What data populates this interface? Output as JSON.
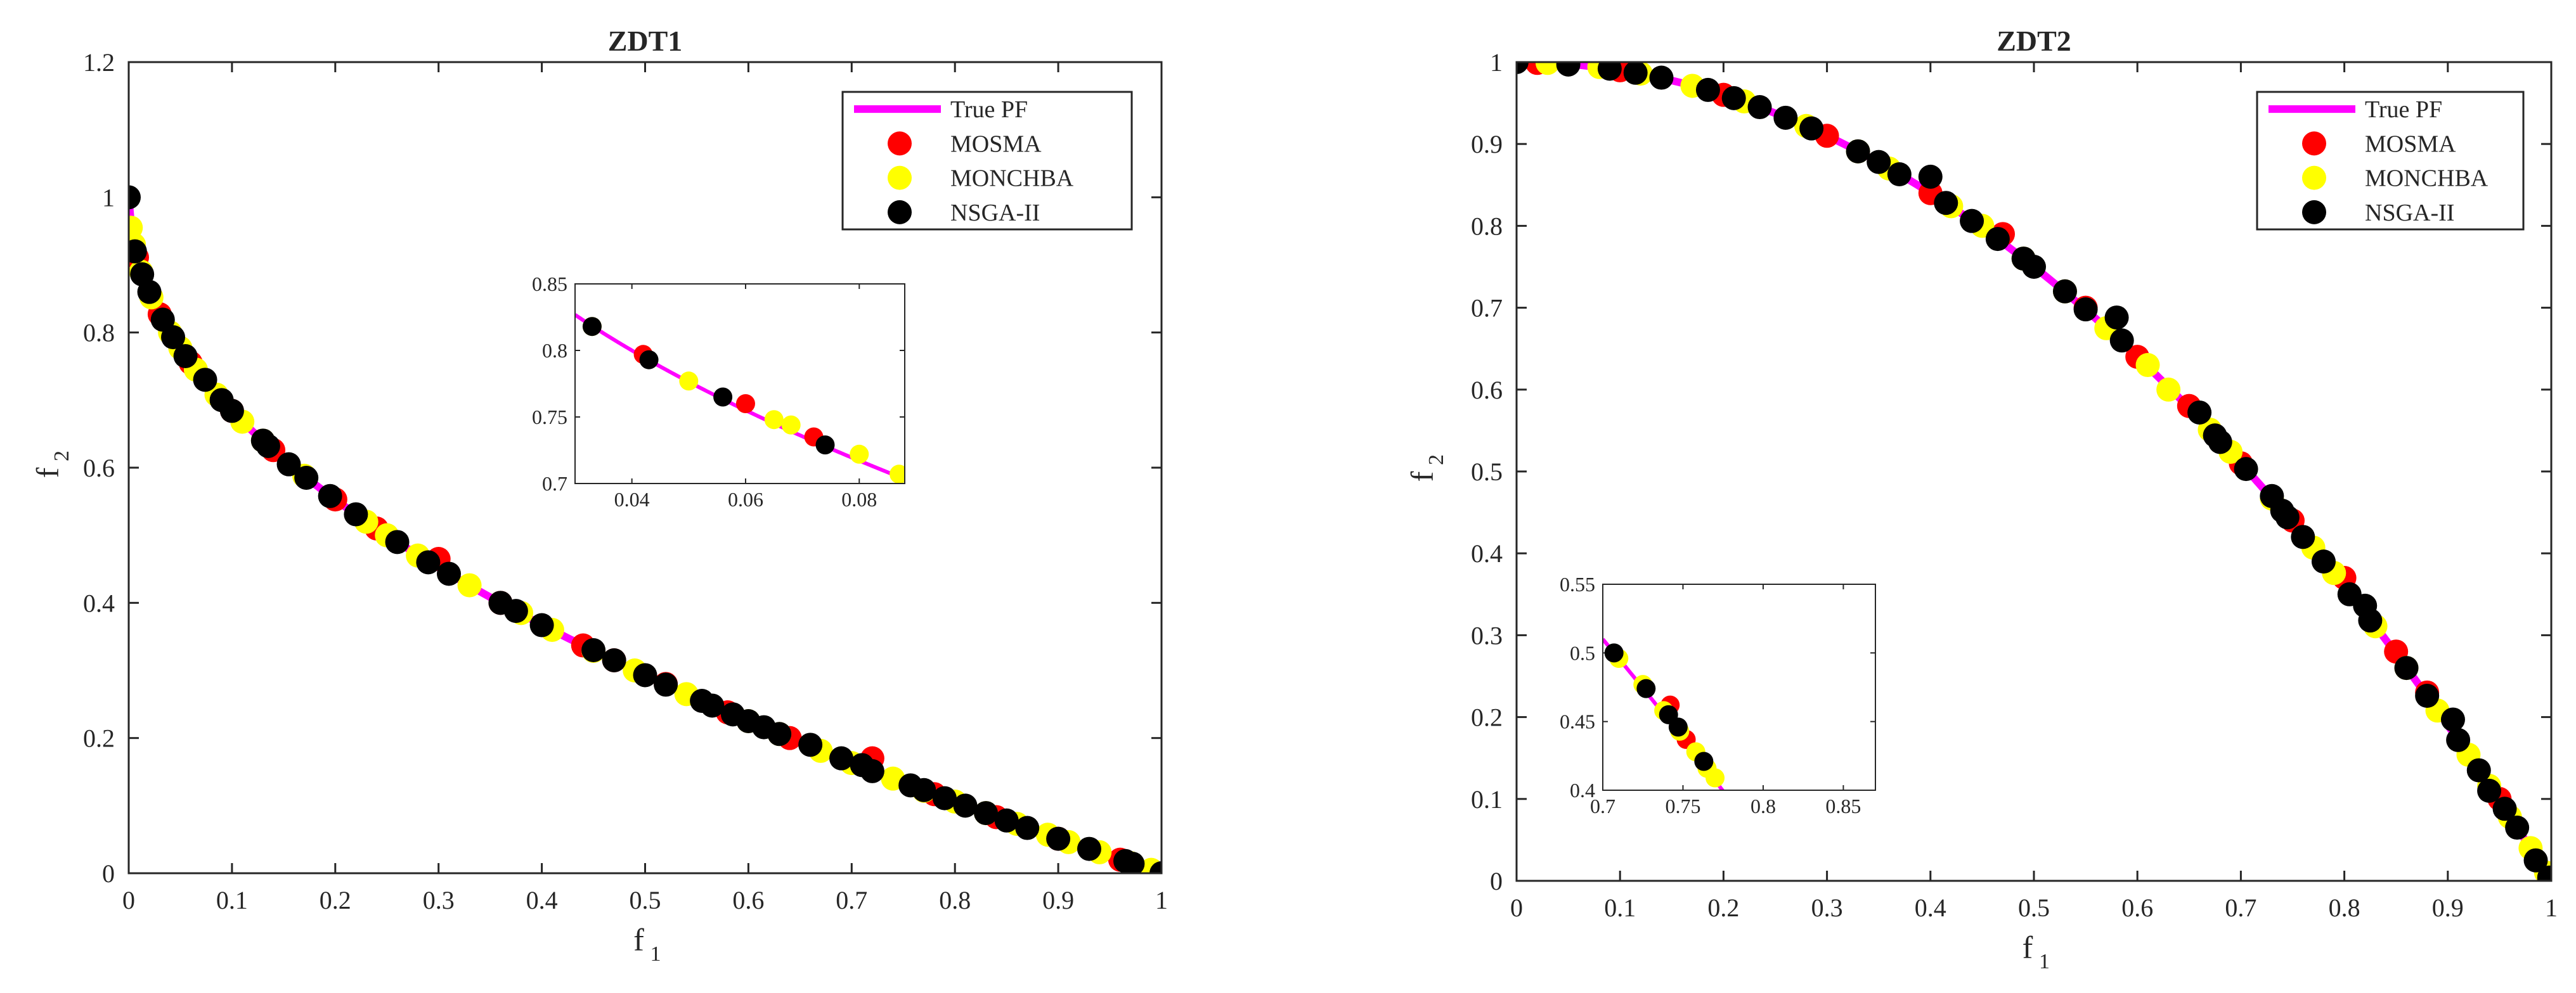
{
  "colors": {
    "true_pf": "#ff00ff",
    "mosma": "#ff0000",
    "monchba": "#ffff00",
    "nsga2": "#000000",
    "axes": "#262626"
  },
  "chart_data": [
    {
      "type": "scatter",
      "title": "ZDT1",
      "xlabel": "f",
      "xlabel_sub": "1",
      "ylabel": "f",
      "ylabel_sub": "2",
      "xlim": [
        0,
        1
      ],
      "ylim": [
        0,
        1.2
      ],
      "xticks": [
        0,
        0.1,
        0.2,
        0.3,
        0.4,
        0.5,
        0.6,
        0.7,
        0.8,
        0.9,
        1
      ],
      "xtick_labels": [
        "0",
        "0.1",
        "0.2",
        "0.3",
        "0.4",
        "0.5",
        "0.6",
        "0.7",
        "0.8",
        "0.9",
        "1"
      ],
      "yticks": [
        0,
        0.2,
        0.4,
        0.6,
        0.8,
        1,
        1.2
      ],
      "ytick_labels": [
        "0",
        "0.2",
        "0.4",
        "0.6",
        "0.8",
        "1",
        "1.2"
      ],
      "grid": false,
      "legend_position": "top-right",
      "legend": [
        "True PF",
        "MOSMA",
        "MONCHBA",
        "NSGA-II"
      ],
      "true_pf": "f2 = 1 - sqrt(f1)",
      "series": [
        {
          "name": "MOSMA",
          "points": [
            [
              0.008,
              0.911
            ],
            [
              0.03,
              0.827
            ],
            [
              0.06,
              0.755
            ],
            [
              0.1,
              0.684
            ],
            [
              0.14,
              0.626
            ],
            [
              0.2,
              0.553
            ],
            [
              0.24,
              0.51
            ],
            [
              0.3,
              0.465
            ],
            [
              0.36,
              0.4
            ],
            [
              0.44,
              0.337
            ],
            [
              0.47,
              0.315
            ],
            [
              0.52,
              0.28
            ],
            [
              0.58,
              0.238
            ],
            [
              0.64,
              0.2
            ],
            [
              0.72,
              0.17
            ],
            [
              0.78,
              0.117
            ],
            [
              0.84,
              0.083
            ],
            [
              0.9,
              0.051
            ],
            [
              0.96,
              0.02
            ]
          ]
        },
        {
          "name": "MONCHBA",
          "points": [
            [
              0.002,
              0.955
            ],
            [
              0.005,
              0.93
            ],
            [
              0.012,
              0.89
            ],
            [
              0.022,
              0.852
            ],
            [
              0.04,
              0.8
            ],
            [
              0.05,
              0.777
            ],
            [
              0.065,
              0.745
            ],
            [
              0.085,
              0.708
            ],
            [
              0.11,
              0.668
            ],
            [
              0.13,
              0.64
            ],
            [
              0.17,
              0.588
            ],
            [
              0.23,
              0.52
            ],
            [
              0.25,
              0.5
            ],
            [
              0.28,
              0.47
            ],
            [
              0.33,
              0.426
            ],
            [
              0.38,
              0.385
            ],
            [
              0.41,
              0.36
            ],
            [
              0.45,
              0.329
            ],
            [
              0.49,
              0.3
            ],
            [
              0.54,
              0.265
            ],
            [
              0.6,
              0.225
            ],
            [
              0.63,
              0.206
            ],
            [
              0.67,
              0.181
            ],
            [
              0.7,
              0.163
            ],
            [
              0.74,
              0.14
            ],
            [
              0.77,
              0.122
            ],
            [
              0.8,
              0.106
            ],
            [
              0.83,
              0.089
            ],
            [
              0.86,
              0.073
            ],
            [
              0.89,
              0.057
            ],
            [
              0.91,
              0.046
            ],
            [
              0.94,
              0.031
            ],
            [
              0.97,
              0.015
            ],
            [
              0.99,
              0.005
            ]
          ]
        },
        {
          "name": "NSGA-II",
          "points": [
            [
              0,
              1
            ],
            [
              0.006,
              0.92
            ],
            [
              0.013,
              0.886
            ],
            [
              0.02,
              0.86
            ],
            [
              0.033,
              0.819
            ],
            [
              0.043,
              0.793
            ],
            [
              0.055,
              0.765
            ],
            [
              0.074,
              0.73
            ],
            [
              0.09,
              0.7
            ],
            [
              0.1,
              0.684
            ],
            [
              0.13,
              0.64
            ],
            [
              0.135,
              0.632
            ],
            [
              0.155,
              0.605
            ],
            [
              0.172,
              0.585
            ],
            [
              0.195,
              0.558
            ],
            [
              0.22,
              0.531
            ],
            [
              0.26,
              0.49
            ],
            [
              0.29,
              0.46
            ],
            [
              0.31,
              0.443
            ],
            [
              0.36,
              0.4
            ],
            [
              0.375,
              0.388
            ],
            [
              0.4,
              0.367
            ],
            [
              0.45,
              0.33
            ],
            [
              0.47,
              0.315
            ],
            [
              0.5,
              0.293
            ],
            [
              0.52,
              0.279
            ],
            [
              0.555,
              0.255
            ],
            [
              0.565,
              0.248
            ],
            [
              0.585,
              0.235
            ],
            [
              0.6,
              0.225
            ],
            [
              0.615,
              0.216
            ],
            [
              0.63,
              0.206
            ],
            [
              0.66,
              0.19
            ],
            [
              0.69,
              0.17
            ],
            [
              0.71,
              0.16
            ],
            [
              0.72,
              0.151
            ],
            [
              0.757,
              0.13
            ],
            [
              0.77,
              0.123
            ],
            [
              0.79,
              0.111
            ],
            [
              0.81,
              0.1
            ],
            [
              0.83,
              0.089
            ],
            [
              0.85,
              0.078
            ],
            [
              0.87,
              0.067
            ],
            [
              0.9,
              0.051
            ],
            [
              0.93,
              0.036
            ],
            [
              0.965,
              0.018
            ],
            [
              0.972,
              0.014
            ],
            [
              1,
              0
            ]
          ]
        }
      ],
      "inset": {
        "xlim": [
          0.03,
          0.088
        ],
        "ylim": [
          0.7,
          0.85
        ],
        "xticks": [
          0.04,
          0.06,
          0.08
        ],
        "xtick_labels": [
          "0.04",
          "0.06",
          "0.08"
        ],
        "yticks": [
          0.7,
          0.75,
          0.8,
          0.85
        ],
        "ytick_labels": [
          "0.7",
          "0.75",
          "0.8",
          "0.85"
        ],
        "series": [
          {
            "name": "MOSMA",
            "points": [
              [
                0.06,
                0.76
              ],
              [
                0.072,
                0.735
              ],
              [
                0.042,
                0.797
              ]
            ]
          },
          {
            "name": "MONCHBA",
            "points": [
              [
                0.05,
                0.777
              ],
              [
                0.065,
                0.748
              ],
              [
                0.068,
                0.744
              ],
              [
                0.08,
                0.722
              ],
              [
                0.087,
                0.707
              ],
              [
                0.033,
                0.818
              ]
            ]
          },
          {
            "name": "NSGA-II",
            "points": [
              [
                0.033,
                0.818
              ],
              [
                0.043,
                0.793
              ],
              [
                0.056,
                0.765
              ],
              [
                0.074,
                0.729
              ]
            ]
          }
        ]
      }
    },
    {
      "type": "scatter",
      "title": "ZDT2",
      "xlabel": "f",
      "xlabel_sub": "1",
      "ylabel": "f",
      "ylabel_sub": "2",
      "xlim": [
        0,
        1
      ],
      "ylim": [
        0,
        1
      ],
      "xticks": [
        0,
        0.1,
        0.2,
        0.3,
        0.4,
        0.5,
        0.6,
        0.7,
        0.8,
        0.9,
        1
      ],
      "xtick_labels": [
        "0",
        "0.1",
        "0.2",
        "0.3",
        "0.4",
        "0.5",
        "0.6",
        "0.7",
        "0.8",
        "0.9",
        "1"
      ],
      "yticks": [
        0,
        0.1,
        0.2,
        0.3,
        0.4,
        0.5,
        0.6,
        0.7,
        0.8,
        0.9,
        1
      ],
      "ytick_labels": [
        "0",
        "0.1",
        "0.2",
        "0.3",
        "0.4",
        "0.5",
        "0.6",
        "0.7",
        "0.8",
        "0.9",
        "1"
      ],
      "grid": false,
      "legend_position": "top-right",
      "legend": [
        "True PF",
        "MOSMA",
        "MONCHBA",
        "NSGA-II"
      ],
      "true_pf": "f2 = 1 - f1^2",
      "series": [
        {
          "name": "MOSMA",
          "points": [
            [
              0.02,
              0.999
            ],
            [
              0.1,
              0.99
            ],
            [
              0.2,
              0.96
            ],
            [
              0.3,
              0.91
            ],
            [
              0.4,
              0.84
            ],
            [
              0.47,
              0.79
            ],
            [
              0.55,
              0.7
            ],
            [
              0.6,
              0.64
            ],
            [
              0.65,
              0.58
            ],
            [
              0.7,
              0.51
            ],
            [
              0.75,
              0.44
            ],
            [
              0.8,
              0.37
            ],
            [
              0.85,
              0.28
            ],
            [
              0.88,
              0.23
            ],
            [
              0.95,
              0.1
            ]
          ]
        },
        {
          "name": "MONCHBA",
          "points": [
            [
              0.03,
              0.999
            ],
            [
              0.08,
              0.994
            ],
            [
              0.12,
              0.986
            ],
            [
              0.17,
              0.971
            ],
            [
              0.22,
              0.952
            ],
            [
              0.28,
              0.922
            ],
            [
              0.33,
              0.891
            ],
            [
              0.36,
              0.87
            ],
            [
              0.42,
              0.824
            ],
            [
              0.45,
              0.8
            ],
            [
              0.49,
              0.76
            ],
            [
              0.53,
              0.72
            ],
            [
              0.57,
              0.675
            ],
            [
              0.61,
              0.63
            ],
            [
              0.63,
              0.6
            ],
            [
              0.67,
              0.551
            ],
            [
              0.69,
              0.524
            ],
            [
              0.73,
              0.467
            ],
            [
              0.77,
              0.407
            ],
            [
              0.79,
              0.376
            ],
            [
              0.83,
              0.311
            ],
            [
              0.86,
              0.26
            ],
            [
              0.89,
              0.208
            ],
            [
              0.92,
              0.154
            ],
            [
              0.94,
              0.116
            ],
            [
              0.96,
              0.078
            ],
            [
              0.98,
              0.04
            ],
            [
              0.995,
              0.01
            ]
          ]
        },
        {
          "name": "NSGA-II",
          "points": [
            [
              0,
              1
            ],
            [
              0.05,
              0.997
            ],
            [
              0.09,
              0.992
            ],
            [
              0.115,
              0.987
            ],
            [
              0.14,
              0.981
            ],
            [
              0.185,
              0.966
            ],
            [
              0.21,
              0.956
            ],
            [
              0.235,
              0.945
            ],
            [
              0.26,
              0.932
            ],
            [
              0.285,
              0.919
            ],
            [
              0.33,
              0.891
            ],
            [
              0.35,
              0.878
            ],
            [
              0.37,
              0.863
            ],
            [
              0.4,
              0.86
            ],
            [
              0.415,
              0.828
            ],
            [
              0.44,
              0.806
            ],
            [
              0.465,
              0.784
            ],
            [
              0.49,
              0.76
            ],
            [
              0.5,
              0.75
            ],
            [
              0.53,
              0.72
            ],
            [
              0.55,
              0.698
            ],
            [
              0.58,
              0.688
            ],
            [
              0.585,
              0.66
            ],
            [
              0.66,
              0.572
            ],
            [
              0.675,
              0.544
            ],
            [
              0.68,
              0.536
            ],
            [
              0.705,
              0.503
            ],
            [
              0.73,
              0.47
            ],
            [
              0.74,
              0.452
            ],
            [
              0.745,
              0.444
            ],
            [
              0.76,
              0.42
            ],
            [
              0.78,
              0.39
            ],
            [
              0.805,
              0.35
            ],
            [
              0.82,
              0.336
            ],
            [
              0.825,
              0.318
            ],
            [
              0.86,
              0.26
            ],
            [
              0.88,
              0.226
            ],
            [
              0.905,
              0.197
            ],
            [
              0.91,
              0.172
            ],
            [
              0.93,
              0.135
            ],
            [
              0.94,
              0.11
            ],
            [
              0.955,
              0.088
            ],
            [
              0.967,
              0.065
            ],
            [
              0.985,
              0.025
            ],
            [
              0.998,
              0.004
            ]
          ]
        }
      ],
      "inset": {
        "xlim": [
          0.7,
          0.87
        ],
        "ylim": [
          0.4,
          0.55
        ],
        "xticks": [
          0.7,
          0.75,
          0.8,
          0.85
        ],
        "xtick_labels": [
          "0.7",
          "0.75",
          "0.8",
          "0.85"
        ],
        "yticks": [
          0.4,
          0.45,
          0.5,
          0.55
        ],
        "ytick_labels": [
          "0.4",
          "0.45",
          "0.5",
          "0.55"
        ],
        "series": [
          {
            "name": "MOSMA",
            "points": [
              [
                0.742,
                0.462
              ],
              [
                0.752,
                0.437
              ]
            ]
          },
          {
            "name": "MONCHBA",
            "points": [
              [
                0.71,
                0.496
              ],
              [
                0.725,
                0.477
              ],
              [
                0.738,
                0.458
              ],
              [
                0.748,
                0.443
              ],
              [
                0.758,
                0.428
              ],
              [
                0.765,
                0.416
              ],
              [
                0.77,
                0.409
              ]
            ]
          },
          {
            "name": "NSGA-II",
            "points": [
              [
                0.707,
                0.5
              ],
              [
                0.727,
                0.474
              ],
              [
                0.741,
                0.455
              ],
              [
                0.747,
                0.446
              ],
              [
                0.763,
                0.421
              ]
            ]
          }
        ]
      }
    }
  ]
}
